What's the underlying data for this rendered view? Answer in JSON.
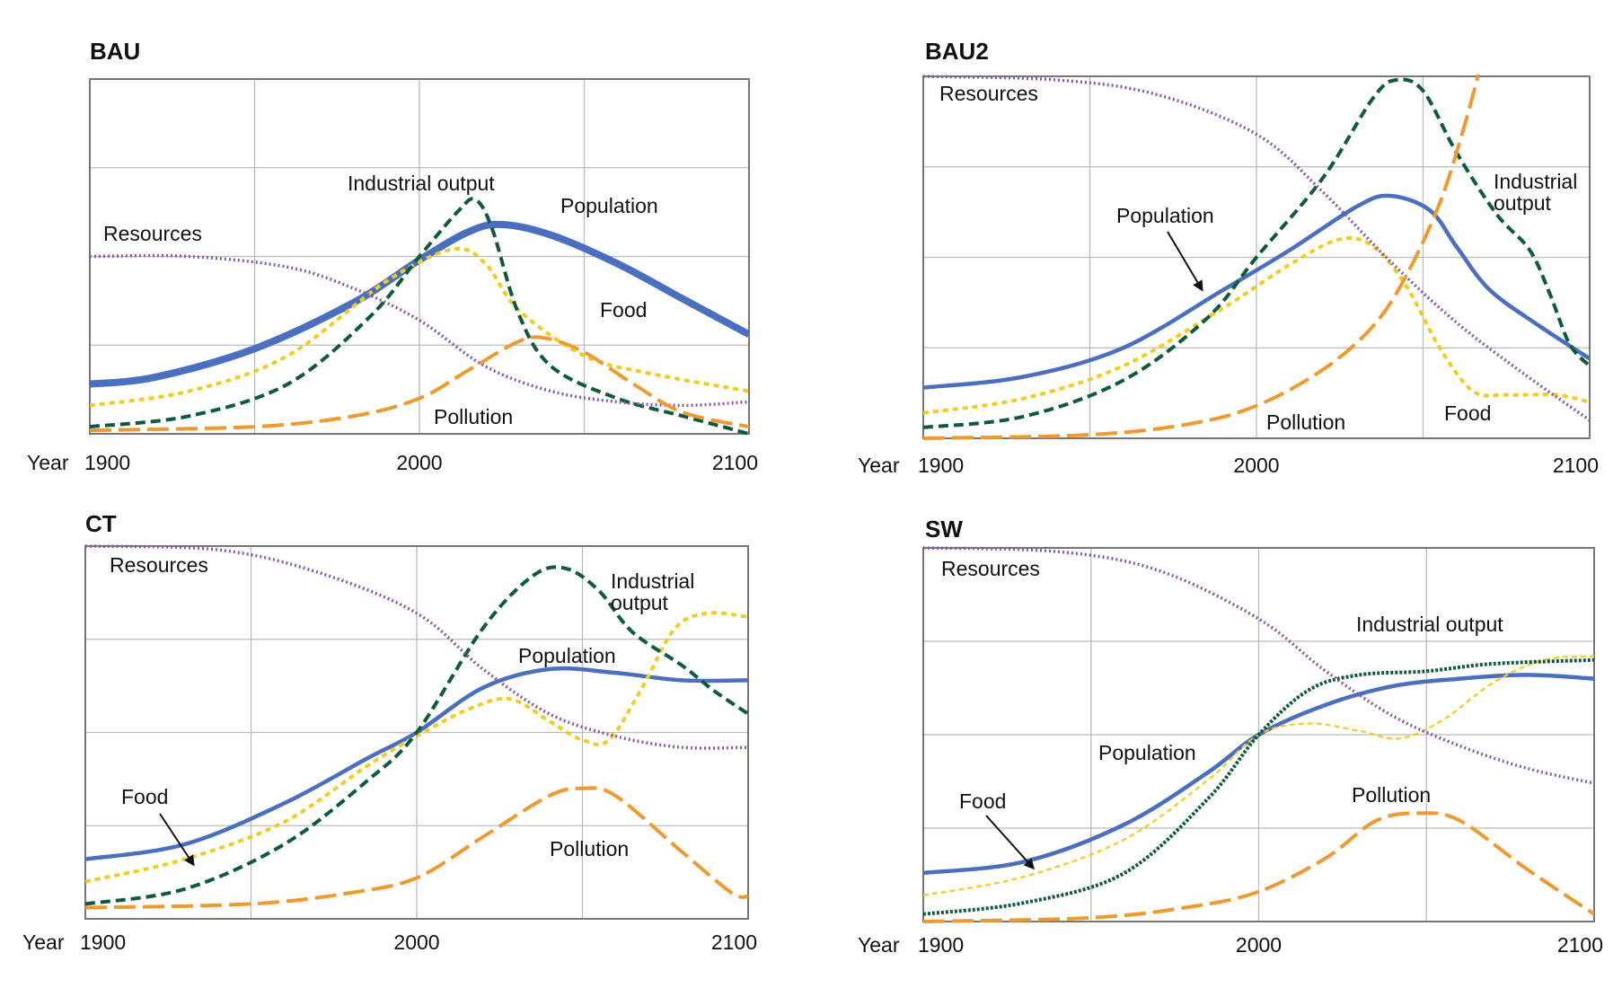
{
  "colors": {
    "Population": "#4a6fc0",
    "Food": "#f2cc1f",
    "Industrial output": "#0e5a3a",
    "Resources": "#8a5aa8",
    "Pollution": "#ef9a2e",
    "grid": "#bbbbbb",
    "frame": "#777777",
    "arrow": "#111111"
  },
  "chart_data": [
    {
      "type": "line",
      "title": "BAU",
      "x_axis_label": "Year",
      "x_ticks": [
        1900,
        2000,
        2100
      ],
      "xlim": [
        1900,
        2100
      ],
      "ylim": [
        0,
        1
      ],
      "grid": true,
      "series": [
        {
          "name": "Population",
          "style": "solid-thick",
          "points": [
            [
              1900,
              0.14
            ],
            [
              1920,
              0.16
            ],
            [
              1950,
              0.24
            ],
            [
              1980,
              0.37
            ],
            [
              2000,
              0.49
            ],
            [
              2015,
              0.57
            ],
            [
              2025,
              0.59
            ],
            [
              2040,
              0.56
            ],
            [
              2060,
              0.48
            ],
            [
              2080,
              0.38
            ],
            [
              2100,
              0.28
            ]
          ]
        },
        {
          "name": "Food",
          "style": "dotted",
          "points": [
            [
              1900,
              0.08
            ],
            [
              1930,
              0.12
            ],
            [
              1960,
              0.22
            ],
            [
              1990,
              0.43
            ],
            [
              2010,
              0.52
            ],
            [
              2020,
              0.48
            ],
            [
              2030,
              0.35
            ],
            [
              2050,
              0.22
            ],
            [
              2070,
              0.17
            ],
            [
              2100,
              0.12
            ]
          ]
        },
        {
          "name": "Industrial output",
          "style": "dashed",
          "points": [
            [
              1900,
              0.02
            ],
            [
              1930,
              0.05
            ],
            [
              1960,
              0.14
            ],
            [
              1985,
              0.33
            ],
            [
              2000,
              0.5
            ],
            [
              2012,
              0.63
            ],
            [
              2017,
              0.66
            ],
            [
              2022,
              0.58
            ],
            [
              2030,
              0.34
            ],
            [
              2040,
              0.19
            ],
            [
              2060,
              0.1
            ],
            [
              2080,
              0.05
            ],
            [
              2100,
              0.0
            ]
          ]
        },
        {
          "name": "Resources",
          "style": "fine-dotted",
          "points": [
            [
              1900,
              0.5
            ],
            [
              1930,
              0.5
            ],
            [
              1960,
              0.47
            ],
            [
              1980,
              0.41
            ],
            [
              2000,
              0.32
            ],
            [
              2020,
              0.19
            ],
            [
              2040,
              0.12
            ],
            [
              2060,
              0.09
            ],
            [
              2080,
              0.08
            ],
            [
              2100,
              0.09
            ]
          ]
        },
        {
          "name": "Pollution",
          "style": "long-dash",
          "points": [
            [
              1900,
              0.01
            ],
            [
              1950,
              0.02
            ],
            [
              1980,
              0.05
            ],
            [
              2000,
              0.1
            ],
            [
              2015,
              0.18
            ],
            [
              2030,
              0.26
            ],
            [
              2038,
              0.27
            ],
            [
              2050,
              0.23
            ],
            [
              2065,
              0.14
            ],
            [
              2080,
              0.06
            ],
            [
              2100,
              0.02
            ]
          ]
        }
      ],
      "labels": {
        "Resources": "Resources",
        "Industrial output": "Industrial output",
        "Population": "Population",
        "Food": "Food",
        "Pollution": "Pollution"
      }
    },
    {
      "type": "line",
      "title": "BAU2",
      "x_axis_label": "Year",
      "x_ticks": [
        1900,
        2000,
        2100
      ],
      "xlim": [
        1900,
        2100
      ],
      "ylim": [
        0,
        1
      ],
      "grid": true,
      "series": [
        {
          "name": "Population",
          "style": "solid",
          "points": [
            [
              1900,
              0.14
            ],
            [
              1930,
              0.17
            ],
            [
              1960,
              0.25
            ],
            [
              1990,
              0.41
            ],
            [
              2010,
              0.52
            ],
            [
              2030,
              0.64
            ],
            [
              2040,
              0.67
            ],
            [
              2052,
              0.63
            ],
            [
              2060,
              0.53
            ],
            [
              2070,
              0.41
            ],
            [
              2085,
              0.31
            ],
            [
              2100,
              0.22
            ]
          ]
        },
        {
          "name": "Food",
          "style": "dotted",
          "points": [
            [
              1900,
              0.07
            ],
            [
              1930,
              0.11
            ],
            [
              1960,
              0.2
            ],
            [
              1990,
              0.36
            ],
            [
              2010,
              0.48
            ],
            [
              2025,
              0.55
            ],
            [
              2035,
              0.53
            ],
            [
              2045,
              0.42
            ],
            [
              2055,
              0.25
            ],
            [
              2065,
              0.13
            ],
            [
              2075,
              0.12
            ],
            [
              2090,
              0.12
            ],
            [
              2100,
              0.1
            ]
          ]
        },
        {
          "name": "Industrial output",
          "style": "dashed",
          "points": [
            [
              1900,
              0.03
            ],
            [
              1930,
              0.06
            ],
            [
              1960,
              0.16
            ],
            [
              1985,
              0.33
            ],
            [
              2000,
              0.5
            ],
            [
              2020,
              0.72
            ],
            [
              2035,
              0.94
            ],
            [
              2042,
              0.99
            ],
            [
              2050,
              0.96
            ],
            [
              2060,
              0.79
            ],
            [
              2072,
              0.62
            ],
            [
              2082,
              0.52
            ],
            [
              2088,
              0.4
            ],
            [
              2094,
              0.26
            ],
            [
              2100,
              0.2
            ]
          ]
        },
        {
          "name": "Resources",
          "style": "fine-dotted",
          "points": [
            [
              1900,
              1.0
            ],
            [
              1940,
              0.99
            ],
            [
              1970,
              0.95
            ],
            [
              2000,
              0.84
            ],
            [
              2020,
              0.68
            ],
            [
              2040,
              0.49
            ],
            [
              2060,
              0.32
            ],
            [
              2080,
              0.18
            ],
            [
              2100,
              0.05
            ]
          ]
        },
        {
          "name": "Pollution",
          "style": "long-dash",
          "points": [
            [
              1900,
              0.0
            ],
            [
              1950,
              0.01
            ],
            [
              1980,
              0.04
            ],
            [
              2000,
              0.09
            ],
            [
              2020,
              0.19
            ],
            [
              2035,
              0.31
            ],
            [
              2045,
              0.45
            ],
            [
              2055,
              0.65
            ],
            [
              2062,
              0.85
            ],
            [
              2067,
              1.02
            ]
          ]
        }
      ],
      "labels": {
        "Resources": "Resources",
        "Industrial output": "Industrial output",
        "Population": "Population",
        "Food": "Food",
        "Pollution": "Pollution"
      }
    },
    {
      "type": "line",
      "title": "CT",
      "x_axis_label": "Year",
      "x_ticks": [
        1900,
        2000,
        2100
      ],
      "xlim": [
        1900,
        2100
      ],
      "ylim": [
        0,
        1
      ],
      "grid": true,
      "series": [
        {
          "name": "Population",
          "style": "solid",
          "points": [
            [
              1900,
              0.16
            ],
            [
              1930,
              0.2
            ],
            [
              1960,
              0.31
            ],
            [
              1985,
              0.43
            ],
            [
              2000,
              0.5
            ],
            [
              2020,
              0.62
            ],
            [
              2040,
              0.67
            ],
            [
              2060,
              0.66
            ],
            [
              2080,
              0.64
            ],
            [
              2100,
              0.64
            ]
          ]
        },
        {
          "name": "Food",
          "style": "dotted",
          "points": [
            [
              1900,
              0.1
            ],
            [
              1930,
              0.16
            ],
            [
              1960,
              0.26
            ],
            [
              1985,
              0.41
            ],
            [
              2000,
              0.49
            ],
            [
              2015,
              0.56
            ],
            [
              2028,
              0.59
            ],
            [
              2040,
              0.53
            ],
            [
              2050,
              0.48
            ],
            [
              2058,
              0.48
            ],
            [
              2068,
              0.62
            ],
            [
              2078,
              0.78
            ],
            [
              2088,
              0.82
            ],
            [
              2100,
              0.81
            ]
          ]
        },
        {
          "name": "Industrial output",
          "style": "dashed",
          "points": [
            [
              1900,
              0.04
            ],
            [
              1930,
              0.08
            ],
            [
              1960,
              0.2
            ],
            [
              1985,
              0.37
            ],
            [
              2000,
              0.5
            ],
            [
              2020,
              0.78
            ],
            [
              2035,
              0.92
            ],
            [
              2045,
              0.94
            ],
            [
              2055,
              0.88
            ],
            [
              2065,
              0.77
            ],
            [
              2080,
              0.68
            ],
            [
              2090,
              0.61
            ],
            [
              2100,
              0.55
            ]
          ]
        },
        {
          "name": "Resources",
          "style": "fine-dotted",
          "points": [
            [
              1900,
              1.0
            ],
            [
              1940,
              0.99
            ],
            [
              1970,
              0.93
            ],
            [
              2000,
              0.82
            ],
            [
              2020,
              0.67
            ],
            [
              2040,
              0.55
            ],
            [
              2060,
              0.49
            ],
            [
              2080,
              0.46
            ],
            [
              2100,
              0.46
            ]
          ]
        },
        {
          "name": "Pollution",
          "style": "long-dash",
          "points": [
            [
              1900,
              0.03
            ],
            [
              1950,
              0.04
            ],
            [
              1980,
              0.07
            ],
            [
              2000,
              0.11
            ],
            [
              2020,
              0.22
            ],
            [
              2040,
              0.33
            ],
            [
              2050,
              0.35
            ],
            [
              2060,
              0.33
            ],
            [
              2080,
              0.18
            ],
            [
              2095,
              0.07
            ],
            [
              2100,
              0.06
            ]
          ]
        }
      ],
      "labels": {
        "Resources": "Resources",
        "Industrial output": "Industrial output",
        "Population": "Population",
        "Food": "Food",
        "Pollution": "Pollution"
      }
    },
    {
      "type": "line",
      "title": "SW",
      "x_axis_label": "Year",
      "x_ticks": [
        1900,
        2000,
        2100
      ],
      "xlim": [
        1900,
        2100
      ],
      "ylim": [
        0,
        1
      ],
      "grid": true,
      "series": [
        {
          "name": "Population",
          "style": "solid",
          "points": [
            [
              1900,
              0.13
            ],
            [
              1930,
              0.16
            ],
            [
              1960,
              0.26
            ],
            [
              1985,
              0.4
            ],
            [
              2000,
              0.5
            ],
            [
              2020,
              0.58
            ],
            [
              2040,
              0.63
            ],
            [
              2060,
              0.65
            ],
            [
              2080,
              0.66
            ],
            [
              2100,
              0.65
            ]
          ]
        },
        {
          "name": "Food",
          "style": "thin-dashed",
          "points": [
            [
              1900,
              0.07
            ],
            [
              1930,
              0.12
            ],
            [
              1960,
              0.22
            ],
            [
              1985,
              0.38
            ],
            [
              2000,
              0.5
            ],
            [
              2015,
              0.53
            ],
            [
              2030,
              0.51
            ],
            [
              2042,
              0.49
            ],
            [
              2055,
              0.54
            ],
            [
              2070,
              0.64
            ],
            [
              2085,
              0.7
            ],
            [
              2100,
              0.71
            ]
          ]
        },
        {
          "name": "Industrial output",
          "style": "dotted-dark",
          "points": [
            [
              1900,
              0.02
            ],
            [
              1930,
              0.05
            ],
            [
              1960,
              0.13
            ],
            [
              1985,
              0.33
            ],
            [
              2000,
              0.5
            ],
            [
              2015,
              0.62
            ],
            [
              2030,
              0.66
            ],
            [
              2050,
              0.67
            ],
            [
              2070,
              0.69
            ],
            [
              2100,
              0.7
            ]
          ]
        },
        {
          "name": "Resources",
          "style": "fine-dotted",
          "points": [
            [
              1900,
              1.0
            ],
            [
              1940,
              0.99
            ],
            [
              1970,
              0.94
            ],
            [
              2000,
              0.81
            ],
            [
              2020,
              0.67
            ],
            [
              2040,
              0.55
            ],
            [
              2060,
              0.47
            ],
            [
              2080,
              0.41
            ],
            [
              2100,
              0.37
            ]
          ]
        },
        {
          "name": "Pollution",
          "style": "long-dash",
          "points": [
            [
              1900,
              0.0
            ],
            [
              1950,
              0.01
            ],
            [
              1980,
              0.04
            ],
            [
              2000,
              0.08
            ],
            [
              2020,
              0.17
            ],
            [
              2035,
              0.27
            ],
            [
              2048,
              0.29
            ],
            [
              2060,
              0.27
            ],
            [
              2080,
              0.14
            ],
            [
              2100,
              0.02
            ]
          ]
        }
      ],
      "labels": {
        "Resources": "Resources",
        "Industrial output": "Industrial output",
        "Population": "Population",
        "Food": "Food",
        "Pollution": "Pollution"
      }
    }
  ]
}
